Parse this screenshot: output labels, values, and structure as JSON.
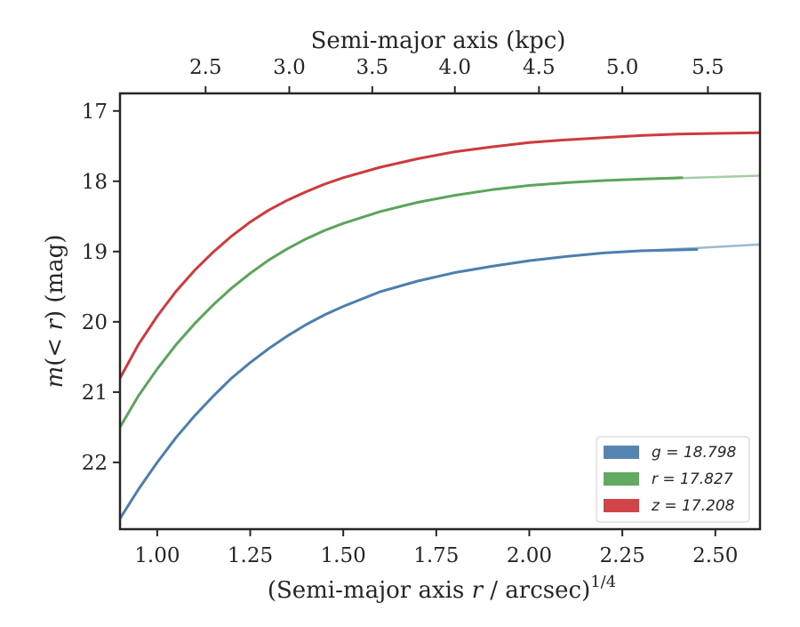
{
  "chart_data": {
    "type": "line",
    "xlabel": "(Semi-major axis r / arcsec)",
    "xlabel_italic": "r",
    "xlabel_parts": [
      "(Semi-major axis ",
      "r",
      " / arcsec)",
      "1/4"
    ],
    "ylabel_parts": [
      "m",
      "(",
      "< r",
      ") (mag)"
    ],
    "top_xlabel": "Semi-major axis (kpc)",
    "xlim": [
      0.9,
      2.62
    ],
    "ylim": [
      22.95,
      16.75
    ],
    "y_inverted": true,
    "x_ticks": [
      1.0,
      1.25,
      1.5,
      1.75,
      2.0,
      2.25,
      2.5
    ],
    "x_tick_labels": [
      "1.00",
      "1.25",
      "1.50",
      "1.75",
      "2.00",
      "2.25",
      "2.50"
    ],
    "y_ticks": [
      17,
      18,
      19,
      20,
      21,
      22
    ],
    "y_tick_labels": [
      "17",
      "18",
      "19",
      "20",
      "21",
      "22"
    ],
    "top_ticks_x": [
      1.13,
      1.355,
      1.578,
      1.8,
      2.026,
      2.25,
      2.48
    ],
    "top_tick_labels": [
      "2.5",
      "3.0",
      "3.5",
      "4.0",
      "4.5",
      "5.0",
      "5.5"
    ],
    "grid": false,
    "legend_position": "bottom-right",
    "series": [
      {
        "name": "g",
        "legend_label": "g = 18.798",
        "color": "#4c7fad",
        "x": [
          0.9,
          0.95,
          1.0,
          1.05,
          1.1,
          1.15,
          1.2,
          1.25,
          1.3,
          1.35,
          1.4,
          1.45,
          1.5,
          1.6,
          1.7,
          1.8,
          1.9,
          2.0,
          2.1,
          2.2,
          2.3,
          2.45
        ],
        "y": [
          22.8,
          22.38,
          22.0,
          21.65,
          21.34,
          21.06,
          20.8,
          20.58,
          20.38,
          20.2,
          20.04,
          19.9,
          19.78,
          19.57,
          19.42,
          19.3,
          19.21,
          19.13,
          19.07,
          19.02,
          18.99,
          18.97
        ],
        "extrapolated_x": [
          2.3,
          2.45,
          2.62
        ],
        "extrapolated_y": [
          18.99,
          18.95,
          18.9
        ]
      },
      {
        "name": "r",
        "legend_label": "r = 17.827",
        "color": "#5aa55a",
        "x": [
          0.9,
          0.95,
          1.0,
          1.05,
          1.1,
          1.15,
          1.2,
          1.25,
          1.3,
          1.35,
          1.4,
          1.45,
          1.5,
          1.6,
          1.7,
          1.8,
          1.9,
          2.0,
          2.1,
          2.2,
          2.3,
          2.41
        ],
        "y": [
          21.5,
          21.05,
          20.67,
          20.33,
          20.03,
          19.76,
          19.52,
          19.31,
          19.12,
          18.96,
          18.82,
          18.7,
          18.6,
          18.43,
          18.3,
          18.2,
          18.12,
          18.06,
          18.02,
          17.99,
          17.97,
          17.95
        ],
        "extrapolated_x": [
          2.3,
          2.45,
          2.62
        ],
        "extrapolated_y": [
          17.97,
          17.95,
          17.92
        ]
      },
      {
        "name": "z",
        "legend_label": "z = 17.208",
        "color": "#cf3a3d",
        "x": [
          0.9,
          0.95,
          1.0,
          1.05,
          1.1,
          1.15,
          1.2,
          1.25,
          1.3,
          1.35,
          1.4,
          1.45,
          1.5,
          1.6,
          1.7,
          1.8,
          1.9,
          2.0,
          2.1,
          2.2,
          2.3,
          2.4,
          2.5,
          2.62
        ],
        "y": [
          20.8,
          20.32,
          19.92,
          19.57,
          19.27,
          19.01,
          18.78,
          18.58,
          18.41,
          18.27,
          18.15,
          18.04,
          17.95,
          17.8,
          17.68,
          17.58,
          17.51,
          17.45,
          17.41,
          17.38,
          17.35,
          17.33,
          17.32,
          17.31
        ]
      }
    ]
  }
}
